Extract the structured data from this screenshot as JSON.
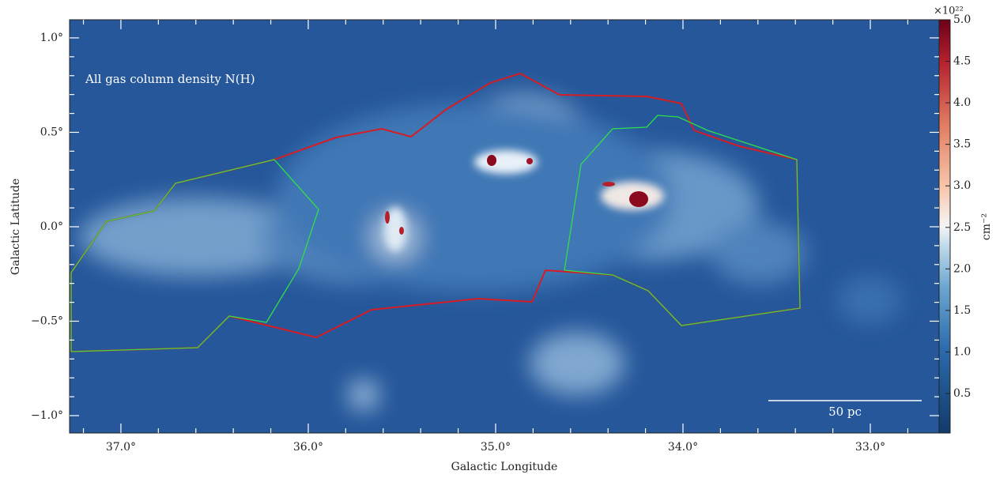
{
  "chart_data": {
    "type": "image",
    "annotation": "All gas column density N(H)",
    "scale_bar": "50 pc",
    "xlabel": "Galactic Longitude",
    "ylabel": "Galactic Latitude",
    "xlim": [
      37.274,
      32.633
    ],
    "ylim": [
      -1.092,
      1.096
    ],
    "xticks": [
      {
        "value": 37,
        "label": "37.0°"
      },
      {
        "value": 36,
        "label": "36.0°"
      },
      {
        "value": 35,
        "label": "35.0°"
      },
      {
        "value": 34,
        "label": "34.0°"
      },
      {
        "value": 33,
        "label": "33.0°"
      }
    ],
    "yticks": [
      {
        "value": 1,
        "label": "1.0°"
      },
      {
        "value": 0.5,
        "label": "0.5°"
      },
      {
        "value": 0,
        "label": "0.0°"
      },
      {
        "value": -0.5,
        "label": "−0.5°"
      },
      {
        "value": -1,
        "label": "−1.0°"
      }
    ],
    "colorbar": {
      "label": "cm⁻²",
      "multiplier": "×10²²",
      "lim": [
        0.024,
        5.0
      ],
      "ticks": [
        0.5,
        {
          "value": 1,
          "label": "1.0"
        },
        1.5,
        {
          "value": 2,
          "label": "2.0"
        },
        2.5,
        {
          "value": 3,
          "label": "3.0"
        },
        3.5,
        {
          "value": 4,
          "label": "4.0"
        },
        4.5,
        {
          "value": 5,
          "label": "5.0"
        }
      ]
    }
  }
}
